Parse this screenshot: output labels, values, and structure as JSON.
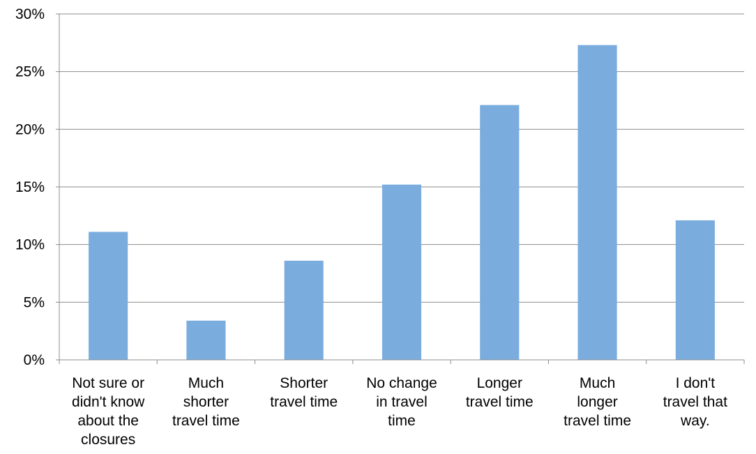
{
  "chart_data": {
    "type": "bar",
    "title": "",
    "xlabel": "",
    "ylabel": "",
    "ylim": [
      0,
      30
    ],
    "y_ticks": [
      "0%",
      "5%",
      "10%",
      "15%",
      "20%",
      "25%",
      "30%"
    ],
    "grid": true,
    "legend": "none",
    "bar_color": "#7aadde",
    "categories": [
      [
        "Not sure or",
        "didn't know",
        "about the",
        "closures"
      ],
      [
        "Much",
        "shorter",
        "travel time"
      ],
      [
        "Shorter",
        "travel time"
      ],
      [
        "No change",
        "in travel",
        "time"
      ],
      [
        "Longer",
        "travel time"
      ],
      [
        "Much",
        "longer",
        "travel time"
      ],
      [
        "I don't",
        "travel that",
        "way."
      ]
    ],
    "values": [
      11.1,
      3.4,
      8.6,
      15.2,
      22.1,
      27.3,
      12.1
    ]
  }
}
